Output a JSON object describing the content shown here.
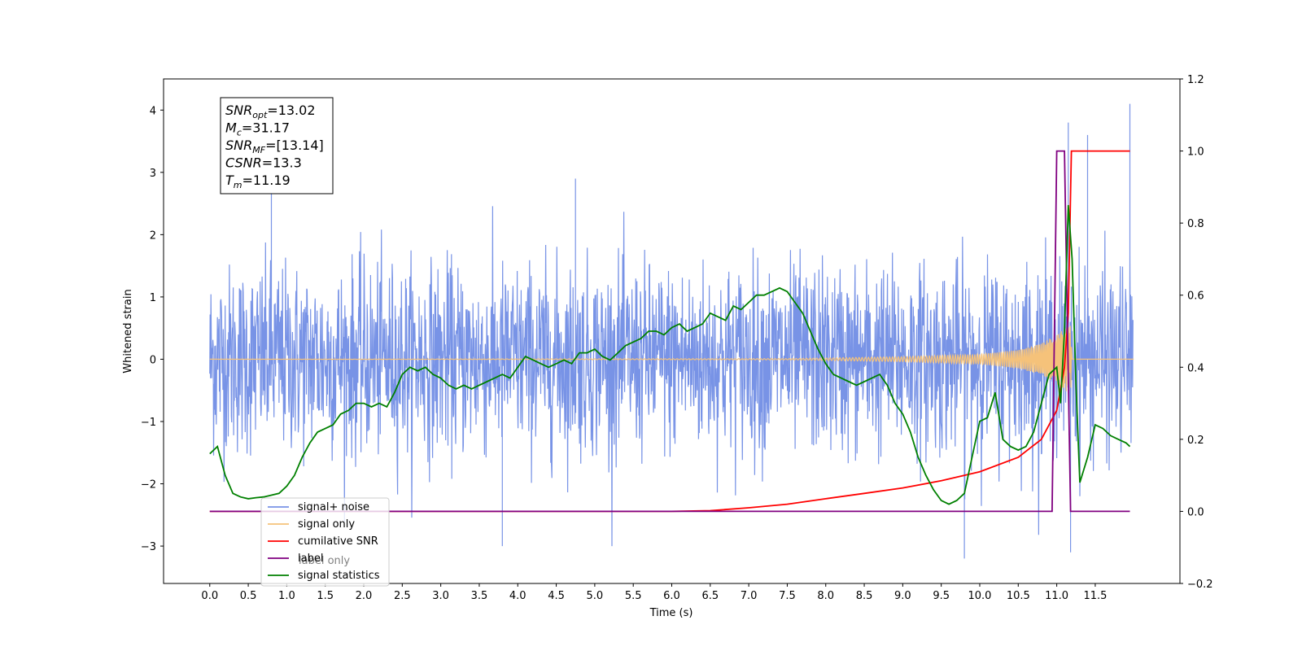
{
  "chart_data": {
    "type": "line",
    "xlabel": "Time (s)",
    "ylabel": "Whitened strain",
    "xlim": [
      -0.6,
      12.6
    ],
    "ylim": [
      -3.6,
      4.5
    ],
    "y2lim": [
      -0.2,
      1.2
    ],
    "x_ticks": [
      "0.0",
      "0.5",
      "1.0",
      "1.5",
      "2.0",
      "2.5",
      "3.0",
      "3.5",
      "4.0",
      "4.5",
      "5.0",
      "5.5",
      "6.0",
      "6.5",
      "7.0",
      "7.5",
      "8.0",
      "8.5",
      "9.0",
      "9.5",
      "10.0",
      "10.5",
      "11.0",
      "11.5"
    ],
    "y_ticks": [
      "−3",
      "−2",
      "−1",
      "0",
      "1",
      "2",
      "3",
      "4"
    ],
    "y2_ticks": [
      "−0.2",
      "0.0",
      "0.2",
      "0.4",
      "0.6",
      "0.8",
      "1.0",
      "1.2"
    ],
    "annotation": {
      "lines": [
        {
          "base": "SNR",
          "sub": "opt",
          "value": "=13.02"
        },
        {
          "base": "M",
          "sub": "c",
          "value": "=31.17"
        },
        {
          "base": "SNR",
          "sub": "MF",
          "value": "=[13.14]"
        },
        {
          "base": "CSNR",
          "sub": "",
          "value": "=13.3"
        },
        {
          "base": "T",
          "sub": "m",
          "value": "=11.19"
        }
      ]
    },
    "series": [
      {
        "name": "signal+ noise",
        "color": "#7893e6",
        "axis": "left",
        "description_values": {
          "x_range": [
            0.0,
            11.99
          ],
          "typical_amplitude": 1.3,
          "max": 4.1,
          "min": -3.2
        }
      },
      {
        "name": "signal only",
        "color": "#f5c27a",
        "axis": "left",
        "x": [
          0.0,
          7.5,
          8.0,
          9.0,
          10.0,
          10.5,
          10.8,
          11.0,
          11.1,
          11.19,
          11.2,
          12.0
        ],
        "amplitude": [
          0.0,
          0.01,
          0.02,
          0.04,
          0.08,
          0.15,
          0.25,
          0.4,
          0.5,
          0.55,
          0.0,
          0.0
        ]
      },
      {
        "name": "cumilative SNR",
        "color": "#ff0000",
        "axis": "right",
        "x": [
          0.0,
          6.0,
          6.5,
          7.0,
          7.5,
          8.0,
          8.5,
          9.0,
          9.5,
          10.0,
          10.5,
          10.8,
          11.0,
          11.1,
          11.15,
          11.19,
          11.2,
          11.95
        ],
        "values": [
          0.0,
          0.0,
          0.002,
          0.01,
          0.02,
          0.035,
          0.05,
          0.065,
          0.085,
          0.11,
          0.15,
          0.2,
          0.28,
          0.4,
          0.55,
          1.0,
          1.0,
          1.0
        ]
      },
      {
        "name": "label",
        "color": "#800080",
        "axis": "right",
        "x": [
          0.0,
          10.94,
          11.0,
          11.1,
          11.18,
          11.19,
          11.95
        ],
        "values": [
          0.0,
          0.0,
          1.0,
          1.0,
          0.0,
          0.0,
          0.0
        ]
      },
      {
        "name": "signal statistics",
        "color": "#008000",
        "axis": "right",
        "x": [
          0.0,
          0.1,
          0.2,
          0.3,
          0.4,
          0.5,
          0.6,
          0.7,
          0.8,
          0.9,
          1.0,
          1.1,
          1.2,
          1.3,
          1.4,
          1.5,
          1.6,
          1.7,
          1.8,
          1.9,
          2.0,
          2.1,
          2.2,
          2.3,
          2.4,
          2.5,
          2.6,
          2.7,
          2.8,
          2.9,
          3.0,
          3.1,
          3.2,
          3.3,
          3.4,
          3.5,
          3.6,
          3.7,
          3.8,
          3.9,
          4.0,
          4.1,
          4.2,
          4.3,
          4.4,
          4.5,
          4.6,
          4.7,
          4.8,
          4.9,
          5.0,
          5.1,
          5.2,
          5.3,
          5.4,
          5.5,
          5.6,
          5.7,
          5.8,
          5.9,
          6.0,
          6.1,
          6.2,
          6.3,
          6.4,
          6.5,
          6.6,
          6.7,
          6.8,
          6.9,
          7.0,
          7.1,
          7.2,
          7.3,
          7.4,
          7.5,
          7.6,
          7.7,
          7.8,
          7.9,
          8.0,
          8.1,
          8.2,
          8.3,
          8.4,
          8.5,
          8.6,
          8.7,
          8.8,
          8.9,
          9.0,
          9.1,
          9.2,
          9.3,
          9.4,
          9.5,
          9.6,
          9.7,
          9.8,
          9.9,
          10.0,
          10.1,
          10.2,
          10.3,
          10.4,
          10.5,
          10.6,
          10.7,
          10.8,
          10.9,
          11.0,
          11.05,
          11.1,
          11.15,
          11.2,
          11.25,
          11.3,
          11.4,
          11.5,
          11.6,
          11.7,
          11.8,
          11.9,
          11.95
        ],
        "values": [
          0.16,
          0.18,
          0.1,
          0.05,
          0.04,
          0.035,
          0.038,
          0.04,
          0.045,
          0.05,
          0.07,
          0.1,
          0.15,
          0.19,
          0.22,
          0.23,
          0.24,
          0.27,
          0.28,
          0.3,
          0.3,
          0.29,
          0.3,
          0.29,
          0.33,
          0.38,
          0.4,
          0.39,
          0.4,
          0.38,
          0.37,
          0.35,
          0.34,
          0.35,
          0.34,
          0.35,
          0.36,
          0.37,
          0.38,
          0.37,
          0.4,
          0.43,
          0.42,
          0.41,
          0.4,
          0.41,
          0.42,
          0.41,
          0.44,
          0.44,
          0.45,
          0.43,
          0.42,
          0.44,
          0.46,
          0.47,
          0.48,
          0.5,
          0.5,
          0.49,
          0.51,
          0.52,
          0.5,
          0.51,
          0.52,
          0.55,
          0.54,
          0.53,
          0.57,
          0.56,
          0.58,
          0.6,
          0.6,
          0.61,
          0.62,
          0.61,
          0.58,
          0.55,
          0.5,
          0.45,
          0.41,
          0.38,
          0.37,
          0.36,
          0.35,
          0.36,
          0.37,
          0.38,
          0.35,
          0.3,
          0.27,
          0.22,
          0.15,
          0.1,
          0.06,
          0.03,
          0.02,
          0.03,
          0.05,
          0.15,
          0.25,
          0.26,
          0.33,
          0.2,
          0.18,
          0.17,
          0.18,
          0.22,
          0.3,
          0.38,
          0.4,
          0.3,
          0.5,
          0.85,
          0.7,
          0.35,
          0.08,
          0.15,
          0.24,
          0.23,
          0.21,
          0.2,
          0.19,
          0.18
        ]
      }
    ],
    "legend": {
      "position": "lower-left",
      "entries": [
        "signal+ noise",
        "signal only",
        "cumilative SNR",
        "label",
        "signal statistics"
      ],
      "overlaid_text": "label only"
    },
    "grid": false
  }
}
